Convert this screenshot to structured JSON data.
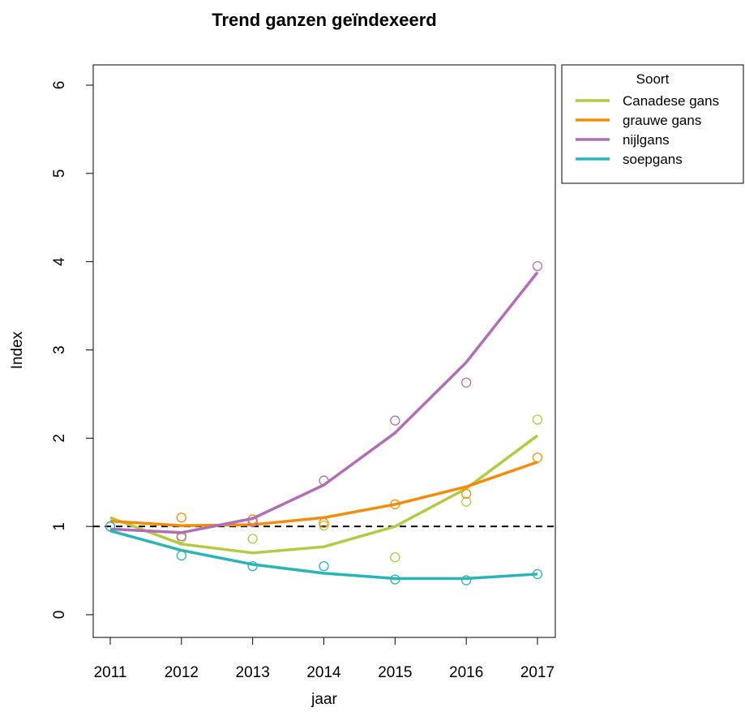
{
  "chart_data": {
    "type": "line",
    "title": "Trend ganzen geïndexeerd",
    "xlabel": "jaar",
    "ylabel": "Index",
    "x": [
      2011,
      2012,
      2013,
      2014,
      2015,
      2016,
      2017
    ],
    "xlim": [
      2011,
      2017
    ],
    "ylim": [
      0,
      6
    ],
    "xticks": [
      "2011",
      "2012",
      "2013",
      "2014",
      "2015",
      "2016",
      "2017"
    ],
    "yticks": [
      "0",
      "1",
      "2",
      "3",
      "4",
      "5",
      "6"
    ],
    "reference_line": {
      "y": 1,
      "style": "dashed",
      "color": "#000000"
    },
    "legend": {
      "title": "Soort",
      "placement": "outside-top-right"
    },
    "series": [
      {
        "name": "Canadese gans",
        "color": "#b5c942",
        "points": [
          1.0,
          0.87,
          0.86,
          1.01,
          0.65,
          1.28,
          2.21
        ],
        "trend": [
          1.1,
          0.8,
          0.7,
          0.77,
          1.0,
          1.43,
          2.03
        ]
      },
      {
        "name": "grauwe gans",
        "color": "#f28d0c",
        "points": [
          1.0,
          1.1,
          1.08,
          1.04,
          1.25,
          1.37,
          1.78
        ],
        "trend": [
          1.06,
          1.01,
          1.02,
          1.1,
          1.25,
          1.45,
          1.73
        ]
      },
      {
        "name": "nijlgans",
        "color": "#b06fb5",
        "points": [
          1.0,
          0.89,
          1.05,
          1.52,
          2.2,
          2.63,
          3.95
        ],
        "trend": [
          0.97,
          0.93,
          1.09,
          1.47,
          2.06,
          2.86,
          3.88
        ]
      },
      {
        "name": "soepgans",
        "color": "#2ab5b5",
        "points": [
          1.0,
          0.67,
          0.55,
          0.55,
          0.4,
          0.39,
          0.46
        ],
        "trend": [
          0.95,
          0.73,
          0.57,
          0.47,
          0.41,
          0.41,
          0.46
        ]
      }
    ]
  }
}
